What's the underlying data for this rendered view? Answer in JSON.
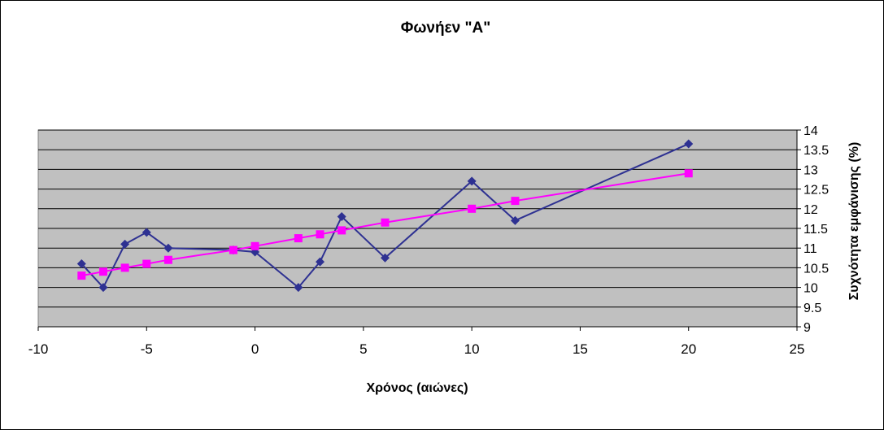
{
  "chart_data": {
    "type": "line",
    "title": "Φωνήεν \"Α\"",
    "xlabel": "Χρόνος (αιώνες)",
    "ylabel": "Συχνότητα εμφάνισης (%)",
    "xlim": [
      -10,
      25
    ],
    "ylim": [
      9,
      14
    ],
    "xticks": [
      -10,
      -5,
      0,
      5,
      10,
      15,
      20,
      25
    ],
    "yticks": [
      9,
      9.5,
      10,
      10.5,
      11,
      11.5,
      12,
      12.5,
      13,
      13.5,
      14
    ],
    "y_axis_side": "right",
    "grid": true,
    "legend": "none",
    "plot_background": "#c0c0c0",
    "series": [
      {
        "color": "#2e3192",
        "marker": "diamond",
        "x": [
          -8,
          -7,
          -6,
          -5,
          -4,
          -1,
          0,
          2,
          3,
          4,
          6,
          10,
          12,
          20
        ],
        "y": [
          10.6,
          10.0,
          11.1,
          11.4,
          11.0,
          10.95,
          10.9,
          10.0,
          10.65,
          11.8,
          10.75,
          12.7,
          11.7,
          13.65
        ]
      },
      {
        "color": "#ff00ff",
        "marker": "square",
        "x": [
          -8,
          -7,
          -6,
          -5,
          -4,
          -1,
          0,
          2,
          3,
          4,
          6,
          10,
          12,
          20
        ],
        "y": [
          10.3,
          10.4,
          10.5,
          10.6,
          10.7,
          10.95,
          11.05,
          11.25,
          11.35,
          11.45,
          11.65,
          12.0,
          12.2,
          12.9
        ]
      }
    ]
  }
}
